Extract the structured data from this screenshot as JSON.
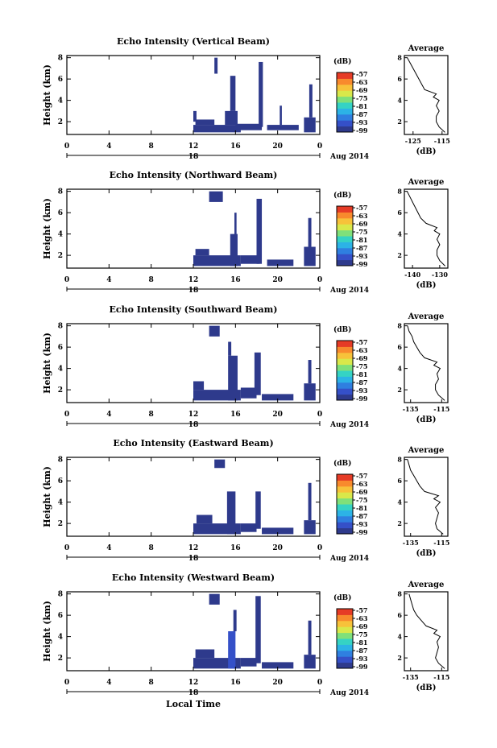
{
  "figure": {
    "bottom_label": "Local Time"
  },
  "chart_data": [
    {
      "type": "heatmap",
      "title": "Echo Intensity (Vertical Beam)",
      "ylabel": "Height (km)",
      "xlabel": "",
      "x_ticks": [
        "0",
        "4",
        "8",
        "12",
        "16",
        "20",
        "0"
      ],
      "y_ticks": [
        "2",
        "4",
        "6",
        "8"
      ],
      "xlim": [
        0,
        24
      ],
      "ylim": [
        0.8,
        8.2
      ],
      "date_label": "18",
      "date_suffix": "Aug 2014",
      "colorbar": {
        "label": "(dB)",
        "ticks": [
          "-57",
          "-63",
          "-69",
          "-75",
          "-81",
          "-87",
          "-93",
          "-99"
        ]
      },
      "cells": [
        {
          "t0": 12.0,
          "t1": 16.5,
          "h0": 1.0,
          "h1": 1.7,
          "v": -98
        },
        {
          "t0": 12.2,
          "t1": 14.0,
          "h0": 1.7,
          "h1": 2.2,
          "v": -98
        },
        {
          "t0": 15.0,
          "t1": 16.2,
          "h0": 1.7,
          "h1": 3.0,
          "v": -98
        },
        {
          "t0": 15.5,
          "t1": 16.0,
          "h0": 3.0,
          "h1": 6.3,
          "v": -97
        },
        {
          "t0": 16.0,
          "t1": 18.5,
          "h0": 1.2,
          "h1": 1.8,
          "v": -98
        },
        {
          "t0": 18.2,
          "t1": 18.6,
          "h0": 1.5,
          "h1": 7.6,
          "v": -97
        },
        {
          "t0": 19.0,
          "t1": 22.0,
          "h0": 1.2,
          "h1": 1.7,
          "v": -98
        },
        {
          "t0": 22.5,
          "t1": 23.6,
          "h0": 1.0,
          "h1": 2.4,
          "v": -98
        },
        {
          "t0": 23.0,
          "t1": 23.3,
          "h0": 2.4,
          "h1": 5.5,
          "v": -97
        },
        {
          "t0": 14.0,
          "t1": 14.3,
          "h0": 6.5,
          "h1": 8.0,
          "v": -98
        },
        {
          "t0": 12.0,
          "t1": 12.3,
          "h0": 2.0,
          "h1": 3.0,
          "v": -98
        },
        {
          "t0": 20.2,
          "t1": 20.4,
          "h0": 1.7,
          "h1": 3.5,
          "v": -98
        }
      ],
      "avg_panel": {
        "title": "Average",
        "xlabel": "(dB)",
        "x_ticks": [
          "-125",
          "-115"
        ],
        "xlim": [
          -128,
          -113
        ],
        "y_ticks": [
          "2",
          "4",
          "6",
          "8"
        ],
        "ylim": [
          0.8,
          8.2
        ],
        "profile": {
          "h": [
            1.0,
            1.5,
            2.0,
            2.5,
            3.0,
            3.5,
            4.0,
            4.3,
            4.6,
            5.0,
            5.5,
            6.0,
            6.5,
            7.0,
            7.5,
            8.0
          ],
          "db": [
            -114,
            -116,
            -117,
            -117,
            -116,
            -117,
            -116,
            -118,
            -117,
            -121,
            -122,
            -123,
            -124,
            -125,
            -126,
            -127
          ]
        }
      }
    },
    {
      "type": "heatmap",
      "title": "Echo Intensity (Northward Beam)",
      "ylabel": "Height (km)",
      "xlabel": "",
      "x_ticks": [
        "0",
        "4",
        "8",
        "12",
        "16",
        "20",
        "0"
      ],
      "y_ticks": [
        "2",
        "4",
        "6",
        "8"
      ],
      "xlim": [
        0,
        24
      ],
      "ylim": [
        0.8,
        8.2
      ],
      "date_label": "18",
      "date_suffix": "Aug 2014",
      "colorbar": {
        "label": "(dB)",
        "ticks": [
          "-57",
          "-63",
          "-69",
          "-75",
          "-81",
          "-87",
          "-93",
          "-99"
        ]
      },
      "cells": [
        {
          "t0": 12.0,
          "t1": 16.5,
          "h0": 1.0,
          "h1": 2.0,
          "v": -98
        },
        {
          "t0": 12.2,
          "t1": 13.5,
          "h0": 2.0,
          "h1": 2.6,
          "v": -98
        },
        {
          "t0": 15.5,
          "t1": 16.2,
          "h0": 1.0,
          "h1": 4.0,
          "v": -95
        },
        {
          "t0": 16.5,
          "t1": 18.3,
          "h0": 1.2,
          "h1": 2.0,
          "v": -98
        },
        {
          "t0": 18.0,
          "t1": 18.5,
          "h0": 1.2,
          "h1": 7.3,
          "v": -97
        },
        {
          "t0": 19.0,
          "t1": 21.5,
          "h0": 1.0,
          "h1": 1.6,
          "v": -98
        },
        {
          "t0": 22.5,
          "t1": 23.6,
          "h0": 1.0,
          "h1": 2.8,
          "v": -98
        },
        {
          "t0": 22.9,
          "t1": 23.2,
          "h0": 2.8,
          "h1": 5.5,
          "v": -97
        },
        {
          "t0": 13.5,
          "t1": 14.8,
          "h0": 7.0,
          "h1": 8.0,
          "v": -98
        },
        {
          "t0": 15.9,
          "t1": 16.1,
          "h0": 3.0,
          "h1": 6.0,
          "v": -97
        }
      ],
      "avg_panel": {
        "title": "Average",
        "xlabel": "(dB)",
        "x_ticks": [
          "-140",
          "-130"
        ],
        "xlim": [
          -143,
          -127
        ],
        "y_ticks": [
          "2",
          "4",
          "6",
          "8"
        ],
        "ylim": [
          0.8,
          8.2
        ],
        "profile": {
          "h": [
            1.0,
            1.5,
            2.0,
            2.5,
            3.0,
            3.5,
            4.0,
            4.3,
            4.6,
            5.0,
            5.5,
            6.0,
            6.5,
            7.0,
            7.5,
            8.0
          ],
          "db": [
            -128,
            -130,
            -131,
            -131,
            -130,
            -131,
            -130,
            -132,
            -131,
            -135,
            -137,
            -138,
            -139,
            -140,
            -141,
            -142
          ]
        }
      }
    },
    {
      "type": "heatmap",
      "title": "Echo Intensity (Southward Beam)",
      "ylabel": "Height (km)",
      "xlabel": "",
      "x_ticks": [
        "0",
        "4",
        "8",
        "12",
        "16",
        "20",
        "0"
      ],
      "y_ticks": [
        "2",
        "4",
        "6",
        "8"
      ],
      "xlim": [
        0,
        24
      ],
      "ylim": [
        0.8,
        8.2
      ],
      "date_label": "18",
      "date_suffix": "Aug 2014",
      "colorbar": {
        "label": "(dB)",
        "ticks": [
          "-57",
          "-63",
          "-69",
          "-75",
          "-81",
          "-87",
          "-93",
          "-99"
        ]
      },
      "cells": [
        {
          "t0": 12.0,
          "t1": 16.5,
          "h0": 1.0,
          "h1": 2.0,
          "v": -98
        },
        {
          "t0": 12.0,
          "t1": 13.0,
          "h0": 2.0,
          "h1": 2.8,
          "v": -98
        },
        {
          "t0": 15.3,
          "t1": 16.2,
          "h0": 1.0,
          "h1": 5.2,
          "v": -97
        },
        {
          "t0": 16.5,
          "t1": 18.0,
          "h0": 1.2,
          "h1": 2.2,
          "v": -98
        },
        {
          "t0": 17.8,
          "t1": 18.4,
          "h0": 1.5,
          "h1": 5.5,
          "v": -97
        },
        {
          "t0": 18.5,
          "t1": 21.5,
          "h0": 1.0,
          "h1": 1.6,
          "v": -98
        },
        {
          "t0": 22.5,
          "t1": 23.6,
          "h0": 1.0,
          "h1": 2.6,
          "v": -98
        },
        {
          "t0": 22.9,
          "t1": 23.2,
          "h0": 2.6,
          "h1": 4.8,
          "v": -97
        },
        {
          "t0": 13.5,
          "t1": 14.5,
          "h0": 7.0,
          "h1": 8.0,
          "v": -98
        },
        {
          "t0": 15.3,
          "t1": 15.6,
          "h0": 5.2,
          "h1": 6.5,
          "v": -98
        }
      ],
      "avg_panel": {
        "title": "Average",
        "xlabel": "(dB)",
        "x_ticks": [
          "-135",
          "-115"
        ],
        "xlim": [
          -139,
          -111
        ],
        "y_ticks": [
          "2",
          "4",
          "6",
          "8"
        ],
        "ylim": [
          0.8,
          8.2
        ],
        "profile": {
          "h": [
            1.0,
            1.5,
            2.0,
            2.5,
            3.0,
            3.5,
            4.0,
            4.3,
            4.6,
            5.0,
            5.5,
            6.0,
            6.5,
            7.0,
            7.5,
            8.0
          ],
          "db": [
            -113,
            -117,
            -119,
            -119,
            -117,
            -118,
            -116,
            -120,
            -118,
            -126,
            -129,
            -131,
            -133,
            -134,
            -136,
            -137
          ]
        }
      }
    },
    {
      "type": "heatmap",
      "title": "Echo Intensity (Eastward Beam)",
      "ylabel": "Height (km)",
      "xlabel": "",
      "x_ticks": [
        "0",
        "4",
        "8",
        "12",
        "16",
        "20",
        "0"
      ],
      "y_ticks": [
        "2",
        "4",
        "6",
        "8"
      ],
      "xlim": [
        0,
        24
      ],
      "ylim": [
        0.8,
        8.2
      ],
      "date_label": "18",
      "date_suffix": "Aug 2014",
      "colorbar": {
        "label": "(dB)",
        "ticks": [
          "-57",
          "-63",
          "-69",
          "-75",
          "-81",
          "-87",
          "-93",
          "-99"
        ]
      },
      "cells": [
        {
          "t0": 12.0,
          "t1": 16.5,
          "h0": 1.0,
          "h1": 2.0,
          "v": -98
        },
        {
          "t0": 12.3,
          "t1": 13.8,
          "h0": 2.0,
          "h1": 2.8,
          "v": -98
        },
        {
          "t0": 15.2,
          "t1": 16.0,
          "h0": 1.0,
          "h1": 5.0,
          "v": -97
        },
        {
          "t0": 16.5,
          "t1": 18.0,
          "h0": 1.2,
          "h1": 2.0,
          "v": -98
        },
        {
          "t0": 17.9,
          "t1": 18.4,
          "h0": 1.5,
          "h1": 5.0,
          "v": -97
        },
        {
          "t0": 18.5,
          "t1": 21.5,
          "h0": 1.0,
          "h1": 1.6,
          "v": -98
        },
        {
          "t0": 22.5,
          "t1": 23.6,
          "h0": 1.0,
          "h1": 2.3,
          "v": -98
        },
        {
          "t0": 22.9,
          "t1": 23.2,
          "h0": 2.3,
          "h1": 5.8,
          "v": -97
        },
        {
          "t0": 14.0,
          "t1": 15.0,
          "h0": 7.2,
          "h1": 8.0,
          "v": -98
        }
      ],
      "avg_panel": {
        "title": "Average",
        "xlabel": "(dB)",
        "x_ticks": [
          "-135",
          "-115"
        ],
        "xlim": [
          -139,
          -111
        ],
        "y_ticks": [
          "2",
          "4",
          "6",
          "8"
        ],
        "ylim": [
          0.8,
          8.2
        ],
        "profile": {
          "h": [
            1.0,
            1.5,
            2.0,
            2.5,
            3.0,
            3.5,
            4.0,
            4.3,
            4.6,
            5.0,
            5.5,
            6.0,
            6.5,
            7.0,
            7.5,
            8.0
          ],
          "db": [
            -114,
            -118,
            -119,
            -118,
            -117,
            -119,
            -116,
            -120,
            -117,
            -126,
            -129,
            -131,
            -133,
            -135,
            -136,
            -137
          ]
        }
      }
    },
    {
      "type": "heatmap",
      "title": "Echo Intensity (Westward Beam)",
      "ylabel": "Height (km)",
      "xlabel": "",
      "x_ticks": [
        "0",
        "4",
        "8",
        "12",
        "16",
        "20",
        "0"
      ],
      "y_ticks": [
        "2",
        "4",
        "6",
        "8"
      ],
      "xlim": [
        0,
        24
      ],
      "ylim": [
        0.8,
        8.2
      ],
      "date_label": "18",
      "date_suffix": "Aug 2014",
      "colorbar": {
        "label": "(dB)",
        "ticks": [
          "-57",
          "-63",
          "-69",
          "-75",
          "-81",
          "-87",
          "-93",
          "-99"
        ]
      },
      "cells": [
        {
          "t0": 12.0,
          "t1": 16.5,
          "h0": 1.0,
          "h1": 2.0,
          "v": -98
        },
        {
          "t0": 12.2,
          "t1": 14.0,
          "h0": 2.0,
          "h1": 2.8,
          "v": -98
        },
        {
          "t0": 15.3,
          "t1": 16.0,
          "h0": 1.0,
          "h1": 4.5,
          "v": -93
        },
        {
          "t0": 16.5,
          "t1": 18.0,
          "h0": 1.2,
          "h1": 2.0,
          "v": -98
        },
        {
          "t0": 17.9,
          "t1": 18.4,
          "h0": 1.5,
          "h1": 7.8,
          "v": -97
        },
        {
          "t0": 18.5,
          "t1": 21.5,
          "h0": 1.0,
          "h1": 1.6,
          "v": -98
        },
        {
          "t0": 22.5,
          "t1": 23.6,
          "h0": 1.0,
          "h1": 2.3,
          "v": -98
        },
        {
          "t0": 22.9,
          "t1": 23.2,
          "h0": 2.3,
          "h1": 5.5,
          "v": -97
        },
        {
          "t0": 13.5,
          "t1": 14.5,
          "h0": 7.0,
          "h1": 8.0,
          "v": -98
        },
        {
          "t0": 15.8,
          "t1": 16.1,
          "h0": 4.5,
          "h1": 6.5,
          "v": -97
        }
      ],
      "avg_panel": {
        "title": "Average",
        "xlabel": "(dB)",
        "x_ticks": [
          "-135",
          "-115"
        ],
        "xlim": [
          -139,
          -111
        ],
        "y_ticks": [
          "2",
          "4",
          "6",
          "8"
        ],
        "ylim": [
          0.8,
          8.2
        ],
        "profile": {
          "h": [
            1.0,
            1.5,
            2.0,
            2.5,
            3.0,
            3.5,
            4.0,
            4.3,
            4.6,
            5.0,
            5.5,
            6.0,
            6.5,
            7.0,
            7.5,
            8.0
          ],
          "db": [
            -113,
            -117,
            -119,
            -118,
            -117,
            -118,
            -116,
            -120,
            -118,
            -125,
            -128,
            -131,
            -133,
            -134,
            -135,
            -136
          ]
        }
      }
    }
  ]
}
